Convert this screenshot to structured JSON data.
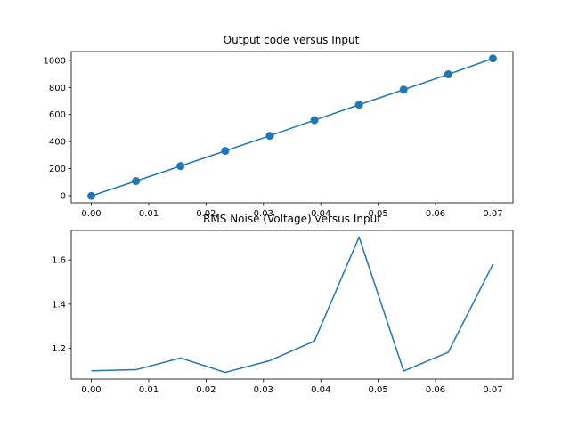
{
  "chart_data": [
    {
      "type": "line",
      "title": "Output code versus Input",
      "xlabel": "",
      "ylabel": "",
      "markers": true,
      "color": "#1f77b4",
      "x": [
        0.0,
        0.00778,
        0.01556,
        0.02333,
        0.03111,
        0.03889,
        0.04667,
        0.05444,
        0.06222,
        0.07
      ],
      "series": [
        {
          "values": [
            -2,
            108,
            219,
            331,
            443,
            558,
            672,
            784,
            897,
            1014
          ]
        }
      ],
      "xlim": [
        -0.0035,
        0.0735
      ],
      "ylim": [
        -53,
        1065
      ],
      "xticks": [
        0.0,
        0.01,
        0.02,
        0.03,
        0.04,
        0.05,
        0.06,
        0.07
      ],
      "xtick_labels": [
        "0.00",
        "0.01",
        "0.02",
        "0.03",
        "0.04",
        "0.05",
        "0.06",
        "0.07"
      ],
      "yticks": [
        0,
        200,
        400,
        600,
        800,
        1000
      ],
      "ytick_labels": [
        "0",
        "200",
        "400",
        "600",
        "800",
        "1000"
      ],
      "grid": false,
      "legend": "none"
    },
    {
      "type": "line",
      "title": "RMS Noise (Voltage) versus Input",
      "xlabel": "",
      "ylabel": "",
      "markers": false,
      "color": "#1f77b4",
      "x": [
        0.0,
        0.00778,
        0.01556,
        0.02333,
        0.03111,
        0.03889,
        0.04667,
        0.05444,
        0.06222,
        0.07
      ],
      "series": [
        {
          "values": [
            1.099,
            1.104,
            1.157,
            1.092,
            1.145,
            1.233,
            1.703,
            1.098,
            1.183,
            1.58
          ]
        }
      ],
      "xlim": [
        -0.0035,
        0.0735
      ],
      "ylim": [
        1.062,
        1.733
      ],
      "xticks": [
        0.0,
        0.01,
        0.02,
        0.03,
        0.04,
        0.05,
        0.06,
        0.07
      ],
      "xtick_labels": [
        "0.00",
        "0.01",
        "0.02",
        "0.03",
        "0.04",
        "0.05",
        "0.06",
        "0.07"
      ],
      "yticks": [
        1.2,
        1.4,
        1.6
      ],
      "ytick_labels": [
        "1.2",
        "1.4",
        "1.6"
      ],
      "grid": false,
      "legend": "none"
    }
  ]
}
